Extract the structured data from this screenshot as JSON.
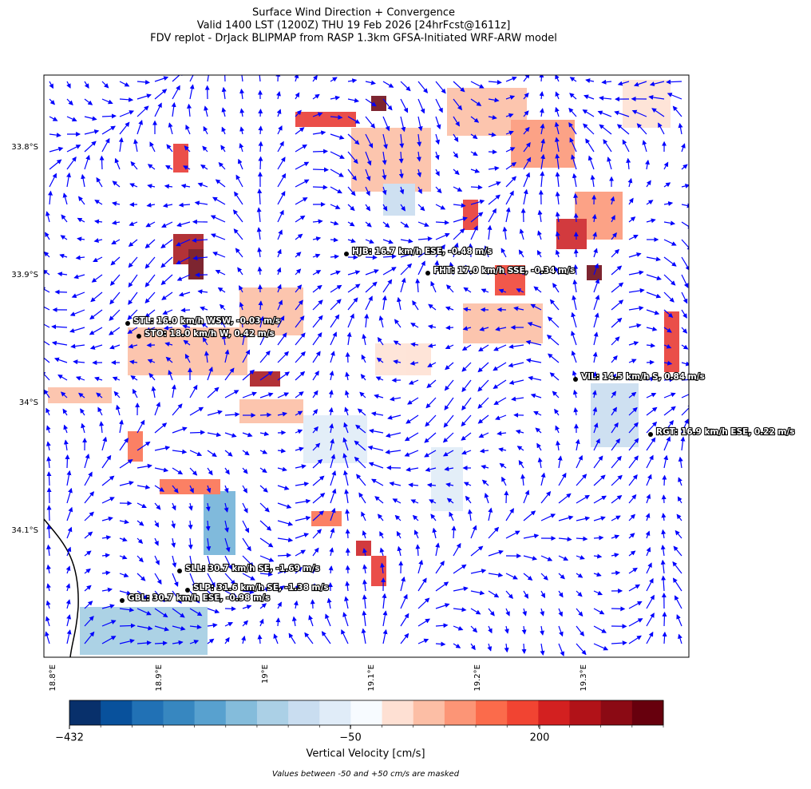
{
  "title": [
    "Surface Wind Direction + Convergence",
    "Valid 1400 LST (1200Z) THU 19 Feb 2026 [24hrFcst@1611z]",
    "FDV replot - DrJack BLIPMAP from RASP 1.3km GFSA-Initiated WRF-ARW model"
  ],
  "map": {
    "lat_ticks": [
      "33.8°S",
      "33.9°S",
      "34°S",
      "34.1°S"
    ],
    "lon_ticks": [
      "18.8°E",
      "18.9°E",
      "19°E",
      "19.1°E",
      "19.2°E",
      "19.3°E"
    ],
    "stations": [
      "HJB: 16.7 km/h ESE, -0.48 m/s",
      "FHT: 17.0 km/h SSE, -0.34 m/s",
      "STL: 16.0 km/h WSW, -0.03 m/s",
      "STO: 18.0 km/h W, 0.42 m/s",
      "VIL: 14.5 km/h S, 0.84 m/s",
      "RGT: 16.9 km/h ESE, 0.22 m/s",
      "SLL: 30.7 km/h SE, -1.69 m/s",
      "SLP: 31.6 km/h SE, -1.38 m/s",
      "GBL: 30.7 km/h ESE, -0.98 m/s"
    ]
  },
  "colorbar": {
    "ticks": [
      "−432",
      "−50",
      "200"
    ],
    "label": "Vertical Velocity [cm/s]",
    "note": "Values between -50 and +50 cm/s are masked",
    "colors": [
      "#08306b",
      "#08519c",
      "#2171b5",
      "#3787c0",
      "#58a1cf",
      "#84bcdb",
      "#abd0e6",
      "#c9ddf0",
      "#e0ecf8",
      "#f7fbff",
      "#fee0d3",
      "#fcbea5",
      "#fc9576",
      "#fb6b4b",
      "#f14432",
      "#d32020",
      "#b11218",
      "#8b0a14",
      "#67000d"
    ]
  }
}
